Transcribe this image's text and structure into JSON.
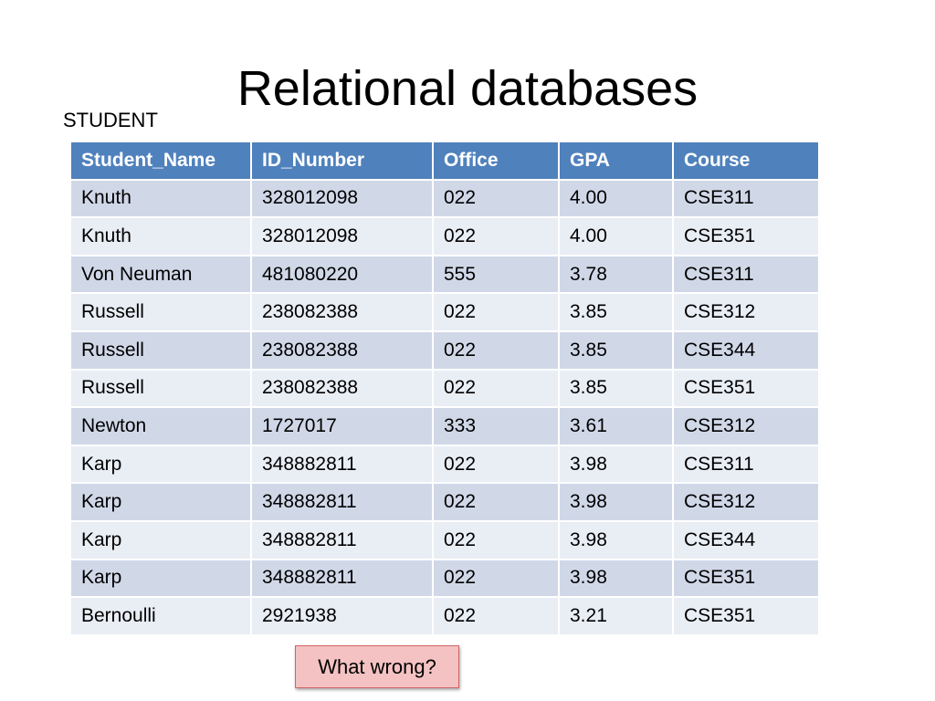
{
  "title": "Relational databases",
  "table_caption": "STUDENT",
  "table": {
    "columns": [
      "Student_Name",
      "ID_Number",
      "Office",
      "GPA",
      "Course"
    ],
    "rows": [
      [
        "Knuth",
        "328012098",
        "022",
        "4.00",
        "CSE311"
      ],
      [
        "Knuth",
        "328012098",
        "022",
        "4.00",
        "CSE351"
      ],
      [
        "Von Neuman",
        "481080220",
        "555",
        "3.78",
        "CSE311"
      ],
      [
        "Russell",
        "238082388",
        "022",
        "3.85",
        "CSE312"
      ],
      [
        "Russell",
        "238082388",
        "022",
        "3.85",
        "CSE344"
      ],
      [
        "Russell",
        "238082388",
        "022",
        "3.85",
        "CSE351"
      ],
      [
        "Newton",
        "1727017",
        "333",
        "3.61",
        "CSE312"
      ],
      [
        "Karp",
        "348882811",
        "022",
        "3.98",
        "CSE311"
      ],
      [
        "Karp",
        "348882811",
        "022",
        "3.98",
        "CSE312"
      ],
      [
        "Karp",
        "348882811",
        "022",
        "3.98",
        "CSE344"
      ],
      [
        "Karp",
        "348882811",
        "022",
        "3.98",
        "CSE351"
      ],
      [
        "Bernoulli",
        "2921938",
        "022",
        "3.21",
        "CSE351"
      ]
    ]
  },
  "callout_label": "What wrong?",
  "colors": {
    "header": "#4f81bd",
    "row_odd": "#d0d8e8",
    "row_even": "#e9edf4",
    "callout_fill": "#f4c2c2",
    "callout_border": "#d06464"
  }
}
